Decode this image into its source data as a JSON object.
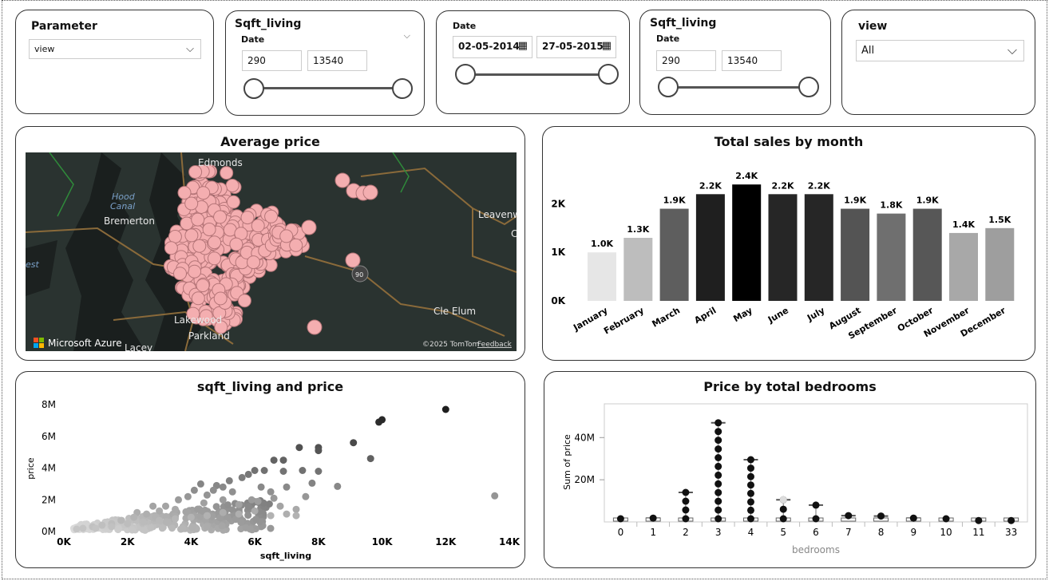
{
  "slicers": {
    "parameter": {
      "title": "Parameter",
      "value": "view"
    },
    "sqft1": {
      "title": "Sqft_living",
      "sublabel": "Date",
      "min": "290",
      "max": "13540"
    },
    "date": {
      "title": "Date",
      "start": "02-05-2014",
      "end": "27-05-2015"
    },
    "sqft2": {
      "title": "Sqft_living",
      "sublabel": "Date",
      "min": "290",
      "max": "13540"
    },
    "view": {
      "title": "view",
      "value": "All"
    }
  },
  "map_card": {
    "title": "Average price",
    "labels": [
      "Edmonds",
      "Hood",
      "Canal",
      "Bremerton",
      "Leavenw",
      "Lakewood",
      "Parkland",
      "Cle Elum",
      "Lacey",
      "est",
      "90",
      "C"
    ],
    "brand": "Microsoft Azure",
    "copyright": "©2025 TomTom",
    "feedback": "Feedback"
  },
  "sales_chart": {
    "title": "Total sales by month",
    "chart_data": {
      "type": "bar",
      "categories": [
        "January",
        "February",
        "March",
        "April",
        "May",
        "June",
        "July",
        "August",
        "September",
        "October",
        "November",
        "December"
      ],
      "values": [
        1000,
        1300,
        1900,
        2200,
        2400,
        2200,
        2200,
        1900,
        1800,
        1900,
        1400,
        1500
      ],
      "data_labels": [
        "1.0K",
        "1.3K",
        "1.9K",
        "2.2K",
        "2.4K",
        "2.2K",
        "2.2K",
        "1.9K",
        "1.8K",
        "1.9K",
        "1.4K",
        "1.5K"
      ],
      "y_ticks": [
        "0K",
        "1K",
        "2K"
      ],
      "colors": [
        "#e6e6e6",
        "#bdbdbd",
        "#5e5e5e",
        "#1f1f1f",
        "#000000",
        "#262626",
        "#262626",
        "#545454",
        "#6f6f6f",
        "#575757",
        "#a8a8a8",
        "#9e9e9e"
      ],
      "ylim": [
        0,
        2600
      ],
      "grid": false
    }
  },
  "scatter_chart": {
    "title": "sqft_living and price",
    "chart_data": {
      "type": "scatter",
      "xlabel": "sqft_living",
      "ylabel": "price",
      "x_ticks": [
        "0K",
        "2K",
        "4K",
        "6K",
        "8K",
        "10K",
        "12K",
        "14K"
      ],
      "y_ticks": [
        "0M",
        "2M",
        "4M",
        "6M",
        "8M"
      ],
      "xlim": [
        0,
        14000
      ],
      "ylim": [
        0,
        8000000
      ],
      "points": [
        [
          9900,
          6900000
        ],
        [
          10000,
          7050000
        ],
        [
          12000,
          7700000
        ],
        [
          13540,
          2250000
        ],
        [
          9100,
          5600000
        ],
        [
          9640,
          4600000
        ],
        [
          6600,
          4500000
        ],
        [
          6900,
          4500000
        ],
        [
          7400,
          5300000
        ],
        [
          8000,
          5300000
        ],
        [
          8000,
          5100000
        ],
        [
          6300,
          3850000
        ],
        [
          6000,
          3850000
        ],
        [
          7500,
          3850000
        ],
        [
          8000,
          3800000
        ],
        [
          5800,
          3600000
        ],
        [
          6900,
          3800000
        ],
        [
          8600,
          2850000
        ],
        [
          7800,
          3050000
        ],
        [
          7600,
          2200000
        ],
        [
          7300,
          1400000
        ],
        [
          7300,
          1000000
        ],
        [
          6500,
          2500000
        ],
        [
          5200,
          3200000
        ],
        [
          5600,
          3400000
        ],
        [
          4800,
          2900000
        ],
        [
          4300,
          3000000
        ],
        [
          3900,
          2200000
        ],
        [
          5000,
          2800000
        ],
        [
          4500,
          2300000
        ],
        [
          6200,
          2800000
        ],
        [
          7000,
          2800000
        ],
        [
          5900,
          2000000
        ],
        [
          3200,
          1600000
        ],
        [
          3600,
          2000000
        ],
        [
          2800,
          1600000
        ],
        [
          2300,
          1200000
        ],
        [
          4100,
          2600000
        ],
        [
          5300,
          2500000
        ],
        [
          4700,
          2600000
        ],
        [
          6100,
          1900000
        ],
        [
          6800,
          1600000
        ],
        [
          6600,
          2100000
        ],
        [
          5500,
          1700000
        ],
        [
          5000,
          2000000
        ],
        [
          4400,
          1800000
        ],
        [
          3500,
          1400000
        ],
        [
          3000,
          1300000
        ],
        [
          2600,
          1100000
        ],
        [
          2200,
          900000
        ],
        [
          1800,
          700000
        ],
        [
          1500,
          500000
        ],
        [
          1200,
          400000
        ],
        [
          900,
          300000
        ],
        [
          600,
          200000
        ],
        [
          400,
          150000
        ],
        [
          1000,
          200000
        ],
        [
          2000,
          500000
        ],
        [
          3000,
          700000
        ],
        [
          4000,
          900000
        ],
        [
          5000,
          1200000
        ],
        [
          6000,
          1300000
        ],
        [
          7000,
          1100000
        ],
        [
          1500,
          300000
        ],
        [
          2500,
          600000
        ],
        [
          3500,
          800000
        ],
        [
          4500,
          1000000
        ],
        [
          5500,
          1100000
        ],
        [
          6500,
          1000000
        ]
      ]
    }
  },
  "bedroom_chart": {
    "title": "Price by total bedrooms",
    "chart_data": {
      "type": "scatter",
      "xlabel": "bedrooms",
      "ylabel": "Sum of price",
      "categories": [
        "0",
        "1",
        "2",
        "3",
        "4",
        "5",
        "6",
        "7",
        "8",
        "9",
        "10",
        "11",
        "33"
      ],
      "values": [
        1500000,
        1800000,
        14000000,
        47000000,
        29500000,
        10500000,
        8000000,
        3000000,
        2800000,
        1800000,
        1500000,
        700000,
        700000
      ],
      "y_ticks": [
        "20M",
        "40M"
      ],
      "ylim": [
        0,
        56000000
      ]
    }
  }
}
